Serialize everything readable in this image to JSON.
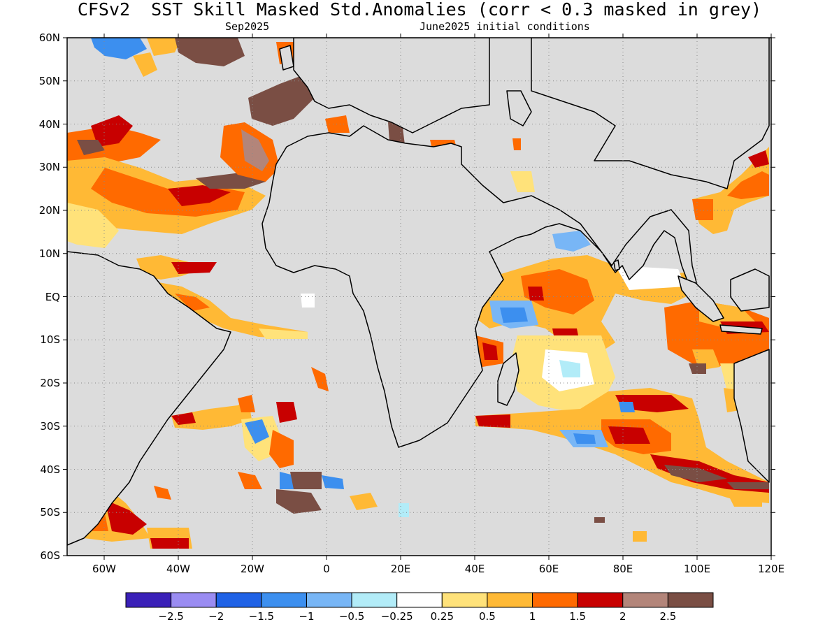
{
  "title": "CFSv2  SST Skill Masked Std.Anomalies (corr < 0.3 masked in grey)",
  "valid_month": "Sep2025",
  "init_label": "June2025 initial conditions",
  "lat_labels": [
    "60N",
    "50N",
    "40N",
    "30N",
    "20N",
    "10N",
    "EQ",
    "10S",
    "20S",
    "30S",
    "40S",
    "50S",
    "60S"
  ],
  "lat_values": [
    60,
    50,
    40,
    30,
    20,
    10,
    0,
    -10,
    -20,
    -30,
    -40,
    -50,
    -60
  ],
  "lon_labels": [
    "60W",
    "40W",
    "20W",
    "0",
    "20E",
    "40E",
    "60E",
    "80E",
    "100E",
    "120E"
  ],
  "lon_values": [
    -60,
    -40,
    -20,
    0,
    20,
    40,
    60,
    80,
    100,
    120
  ],
  "extent": {
    "lon_min": -70,
    "lon_max": 120,
    "lat_min": -60,
    "lat_max": 60
  },
  "colorbar": {
    "colors": [
      "#3a20b8",
      "#9a8cf2",
      "#1f62e6",
      "#3c8fef",
      "#78b6f6",
      "#b2ecf8",
      "#ffffff",
      "#ffe27a",
      "#ffb935",
      "#ff6a00",
      "#c80000",
      "#b3857a",
      "#7a4e44"
    ],
    "labels": [
      "-2.5",
      "-2",
      "-1.5",
      "-1",
      "-0.5",
      "-0.25",
      "0.25",
      "0.5",
      "1",
      "1.5",
      "2",
      "2.5"
    ],
    "mask_color": "#dcdcdc"
  }
}
